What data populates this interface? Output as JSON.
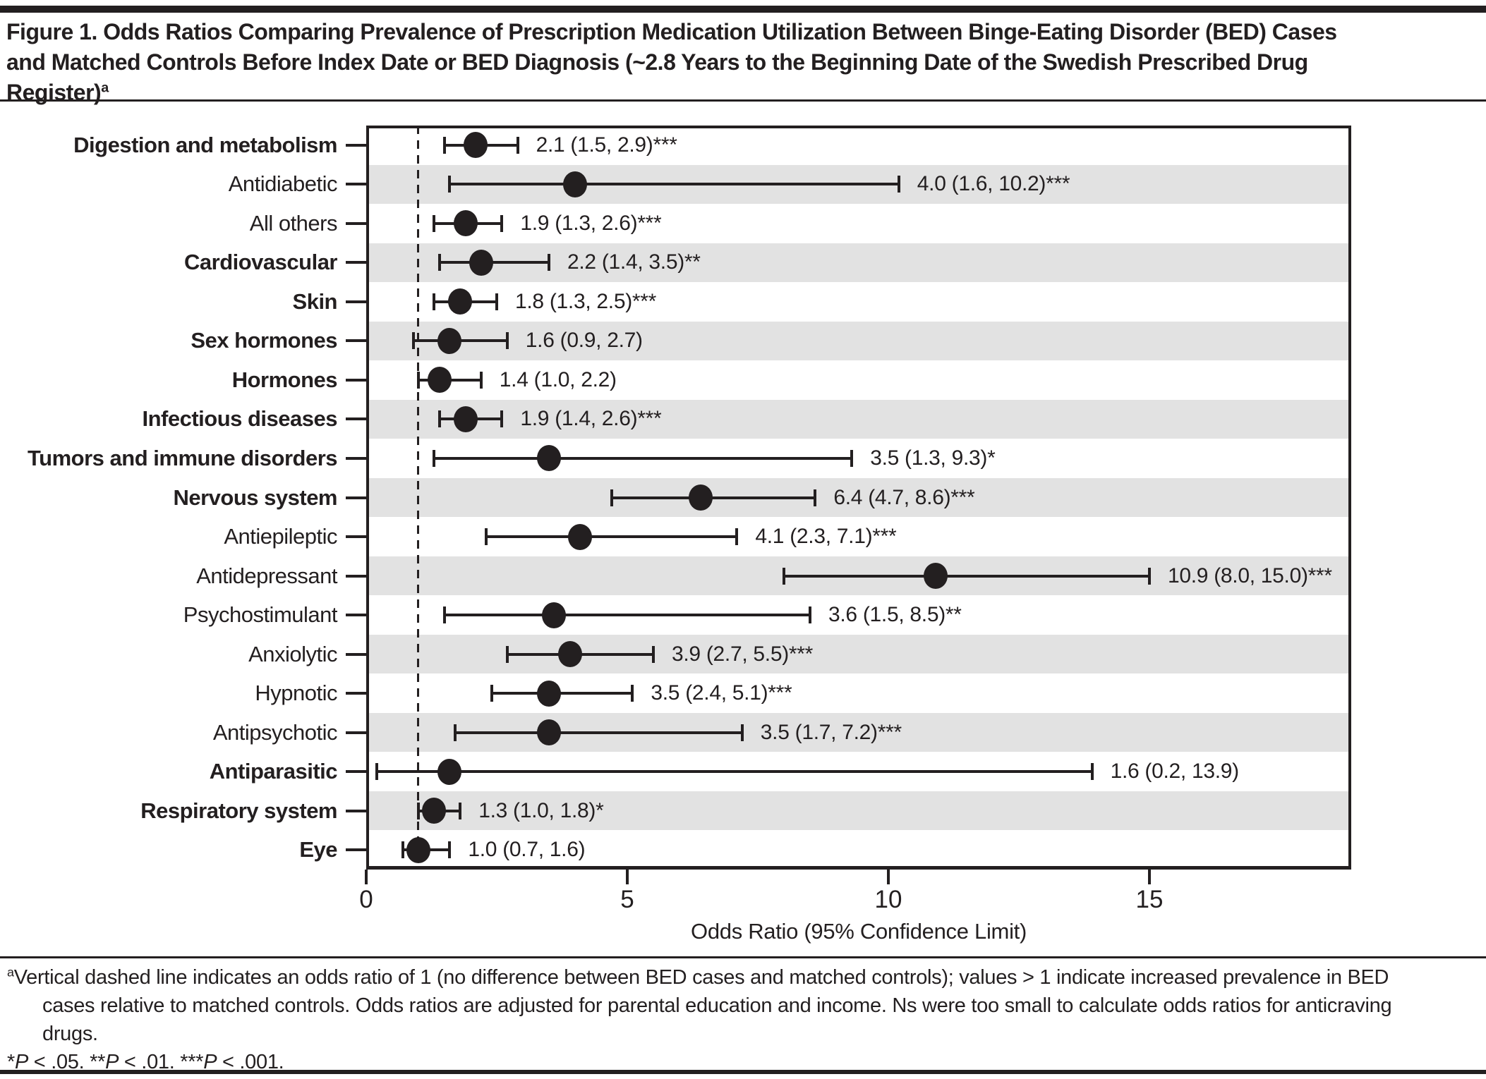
{
  "page": {
    "title_lines": [
      "Figure 1. Odds Ratios Comparing Prevalence of Prescription Medication Utilization Between Binge-Eating Disorder (BED) Cases",
      "and Matched Controls Before Index Date or BED Diagnosis (~2.8 Years to the Beginning Date of the Swedish Prescribed Drug",
      "Register)"
    ],
    "title_superscript": "a",
    "footnote_superscript": "a",
    "footnote_lines": [
      "Vertical dashed line indicates an odds ratio of 1 (no difference between BED cases and matched controls); values > 1 indicate increased prevalence in BED",
      "cases relative to matched controls. Odds ratios are adjusted for parental education and income. Ns were too small to calculate odds ratios for anticraving",
      "drugs."
    ],
    "significance_note": "*P < .05. **P < .01. ***P < .001."
  },
  "chart_data": {
    "type": "scatter",
    "variant": "forest-plot",
    "title": "",
    "xlabel": "Odds Ratio (95% Confidence Limit)",
    "ylabel": "",
    "xlim": [
      0,
      18.9
    ],
    "x_ticks": [
      0,
      5,
      10,
      15
    ],
    "reference_line_x": 1,
    "grid": false,
    "shaded_row_color": "#e2e2e2",
    "marker_color": "#231f20",
    "rows": [
      {
        "label": "Digestion and metabolism",
        "bold": true,
        "or": 2.1,
        "ci_low": 1.5,
        "ci_high": 2.9,
        "sig": "***",
        "text": "2.1 (1.5, 2.9)***",
        "shaded": false
      },
      {
        "label": "Antidiabetic",
        "bold": false,
        "or": 4.0,
        "ci_low": 1.6,
        "ci_high": 10.2,
        "sig": "***",
        "text": "4.0 (1.6, 10.2)***",
        "shaded": true
      },
      {
        "label": "All others",
        "bold": false,
        "or": 1.9,
        "ci_low": 1.3,
        "ci_high": 2.6,
        "sig": "***",
        "text": "1.9 (1.3, 2.6)***",
        "shaded": false
      },
      {
        "label": "Cardiovascular",
        "bold": true,
        "or": 2.2,
        "ci_low": 1.4,
        "ci_high": 3.5,
        "sig": "**",
        "text": "2.2 (1.4, 3.5)**",
        "shaded": true
      },
      {
        "label": "Skin",
        "bold": true,
        "or": 1.8,
        "ci_low": 1.3,
        "ci_high": 2.5,
        "sig": "***",
        "text": "1.8 (1.3, 2.5)***",
        "shaded": false
      },
      {
        "label": "Sex hormones",
        "bold": true,
        "or": 1.6,
        "ci_low": 0.9,
        "ci_high": 2.7,
        "sig": "",
        "text": "1.6 (0.9, 2.7)",
        "shaded": true
      },
      {
        "label": "Hormones",
        "bold": true,
        "or": 1.4,
        "ci_low": 1.0,
        "ci_high": 2.2,
        "sig": "",
        "text": "1.4 (1.0, 2.2)",
        "shaded": false
      },
      {
        "label": "Infectious diseases",
        "bold": true,
        "or": 1.9,
        "ci_low": 1.4,
        "ci_high": 2.6,
        "sig": "***",
        "text": "1.9 (1.4, 2.6)***",
        "shaded": true
      },
      {
        "label": "Tumors and immune disorders",
        "bold": true,
        "or": 3.5,
        "ci_low": 1.3,
        "ci_high": 9.3,
        "sig": "*",
        "text": "3.5 (1.3, 9.3)*",
        "shaded": false
      },
      {
        "label": "Nervous system",
        "bold": true,
        "or": 6.4,
        "ci_low": 4.7,
        "ci_high": 8.6,
        "sig": "***",
        "text": "6.4 (4.7, 8.6)***",
        "shaded": true
      },
      {
        "label": "Antiepileptic",
        "bold": false,
        "or": 4.1,
        "ci_low": 2.3,
        "ci_high": 7.1,
        "sig": "***",
        "text": "4.1 (2.3, 7.1)***",
        "shaded": false
      },
      {
        "label": "Antidepressant",
        "bold": false,
        "or": 10.9,
        "ci_low": 8.0,
        "ci_high": 15.0,
        "sig": "***",
        "text": "10.9 (8.0, 15.0)***",
        "shaded": true
      },
      {
        "label": "Psychostimulant",
        "bold": false,
        "or": 3.6,
        "ci_low": 1.5,
        "ci_high": 8.5,
        "sig": "**",
        "text": "3.6 (1.5, 8.5)**",
        "shaded": false
      },
      {
        "label": "Anxiolytic",
        "bold": false,
        "or": 3.9,
        "ci_low": 2.7,
        "ci_high": 5.5,
        "sig": "***",
        "text": "3.9 (2.7, 5.5)***",
        "shaded": true
      },
      {
        "label": "Hypnotic",
        "bold": false,
        "or": 3.5,
        "ci_low": 2.4,
        "ci_high": 5.1,
        "sig": "***",
        "text": "3.5 (2.4, 5.1)***",
        "shaded": false
      },
      {
        "label": "Antipsychotic",
        "bold": false,
        "or": 3.5,
        "ci_low": 1.7,
        "ci_high": 7.2,
        "sig": "***",
        "text": "3.5 (1.7, 7.2)***",
        "shaded": true
      },
      {
        "label": "Antiparasitic",
        "bold": true,
        "or": 1.6,
        "ci_low": 0.2,
        "ci_high": 13.9,
        "sig": "",
        "text": "1.6 (0.2, 13.9)",
        "shaded": false
      },
      {
        "label": "Respiratory system",
        "bold": true,
        "or": 1.3,
        "ci_low": 1.0,
        "ci_high": 1.8,
        "sig": "*",
        "text": "1.3 (1.0, 1.8)*",
        "shaded": true
      },
      {
        "label": "Eye",
        "bold": true,
        "or": 1.0,
        "ci_low": 0.7,
        "ci_high": 1.6,
        "sig": "",
        "text": "1.0 (0.7, 1.6)",
        "shaded": false
      }
    ]
  }
}
